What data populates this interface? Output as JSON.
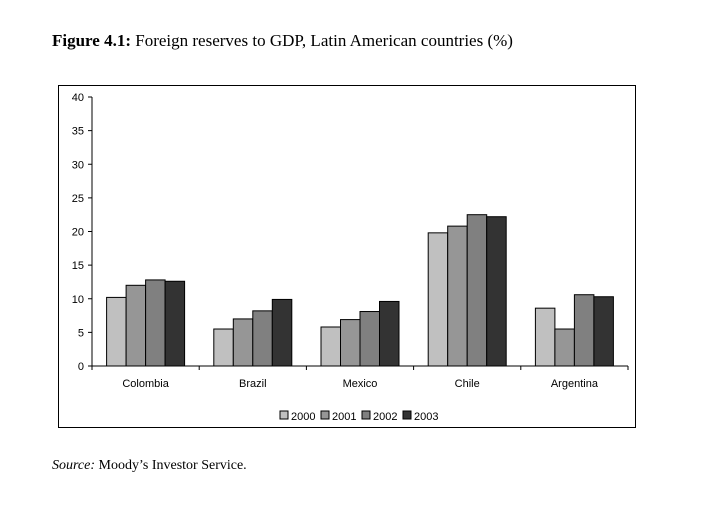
{
  "title": {
    "label": "Figure 4.1:",
    "text": " Foreign reserves to GDP, Latin American countries (%)"
  },
  "source": {
    "label": "Source:",
    "text": " Moody’s Investor Service."
  },
  "chart_data": {
    "type": "bar",
    "categories": [
      "Colombia",
      "Brazil",
      "Mexico",
      "Chile",
      "Argentina"
    ],
    "series": [
      {
        "name": "2000",
        "color": "#c0c0c0",
        "values": [
          10.2,
          5.5,
          5.8,
          19.8,
          8.6
        ]
      },
      {
        "name": "2001",
        "color": "#969696",
        "values": [
          12.0,
          7.0,
          6.9,
          20.8,
          5.5
        ]
      },
      {
        "name": "2002",
        "color": "#808080",
        "values": [
          12.8,
          8.2,
          8.1,
          22.5,
          10.6
        ]
      },
      {
        "name": "2003",
        "color": "#333333",
        "values": [
          12.6,
          9.9,
          9.6,
          22.2,
          10.3
        ]
      }
    ],
    "ylim": [
      0,
      40
    ],
    "yticks": [
      0,
      5,
      10,
      15,
      20,
      25,
      30,
      35,
      40
    ],
    "grid": false,
    "legend": "bottom"
  }
}
